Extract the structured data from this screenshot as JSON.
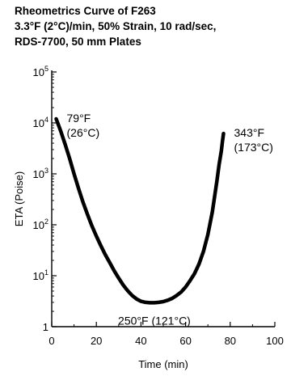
{
  "chart_data": {
    "type": "line",
    "title_lines": [
      "Rheometrics Curve of F263",
      "3.3°F (2°C)/min, 50% Strain, 10 rad/sec,",
      "RDS-7700, 50 mm Plates"
    ],
    "xlabel": "Time (min)",
    "ylabel": "ETA  (Poise)",
    "xlim": [
      0,
      100
    ],
    "ylim": [
      1,
      100000
    ],
    "yscale": "log",
    "xticks": [
      0,
      20,
      40,
      60,
      80,
      100
    ],
    "xtick_labels": [
      "0",
      "20",
      "40",
      "60",
      "80",
      "100"
    ],
    "yticks": [
      1,
      10,
      100,
      1000,
      10000,
      100000
    ],
    "ytick_labels": [
      {
        "base": "1",
        "exp": ""
      },
      {
        "base": "10",
        "exp": "1"
      },
      {
        "base": "10",
        "exp": "2"
      },
      {
        "base": "10",
        "exp": "3"
      },
      {
        "base": "10",
        "exp": "4"
      },
      {
        "base": "10",
        "exp": "5"
      }
    ],
    "grid": false,
    "series": [
      {
        "x": [
          2,
          4,
          6,
          8,
          10,
          12,
          14,
          16,
          18,
          20,
          22,
          24,
          26,
          28,
          30,
          32,
          34,
          36,
          38,
          40,
          42,
          44,
          46,
          48,
          50,
          52,
          54,
          56,
          58,
          60,
          62,
          64,
          66,
          68,
          70,
          72,
          74,
          75,
          76,
          76.5,
          77
        ],
        "y": [
          12000,
          7000,
          3800,
          2000,
          1000,
          520,
          280,
          160,
          95,
          60,
          39,
          26,
          18,
          12.5,
          9,
          6.6,
          5.1,
          4.1,
          3.5,
          3.15,
          3.0,
          2.95,
          2.95,
          3.0,
          3.1,
          3.3,
          3.6,
          4.1,
          4.8,
          6.0,
          8.0,
          11,
          17,
          30,
          65,
          180,
          700,
          1500,
          2800,
          4200,
          6200
        ]
      }
    ],
    "annotations": [
      {
        "lines": [
          "79°F",
          "(26°C)"
        ],
        "x": 2,
        "y": 12000,
        "anchor": "right"
      },
      {
        "lines": [
          "343°F",
          "(173°C)"
        ],
        "x": 77,
        "y": 6200,
        "anchor": "right"
      },
      {
        "lines": [
          "250°F (121°C)"
        ],
        "x": 46,
        "y": 2.95,
        "anchor": "below"
      }
    ]
  }
}
